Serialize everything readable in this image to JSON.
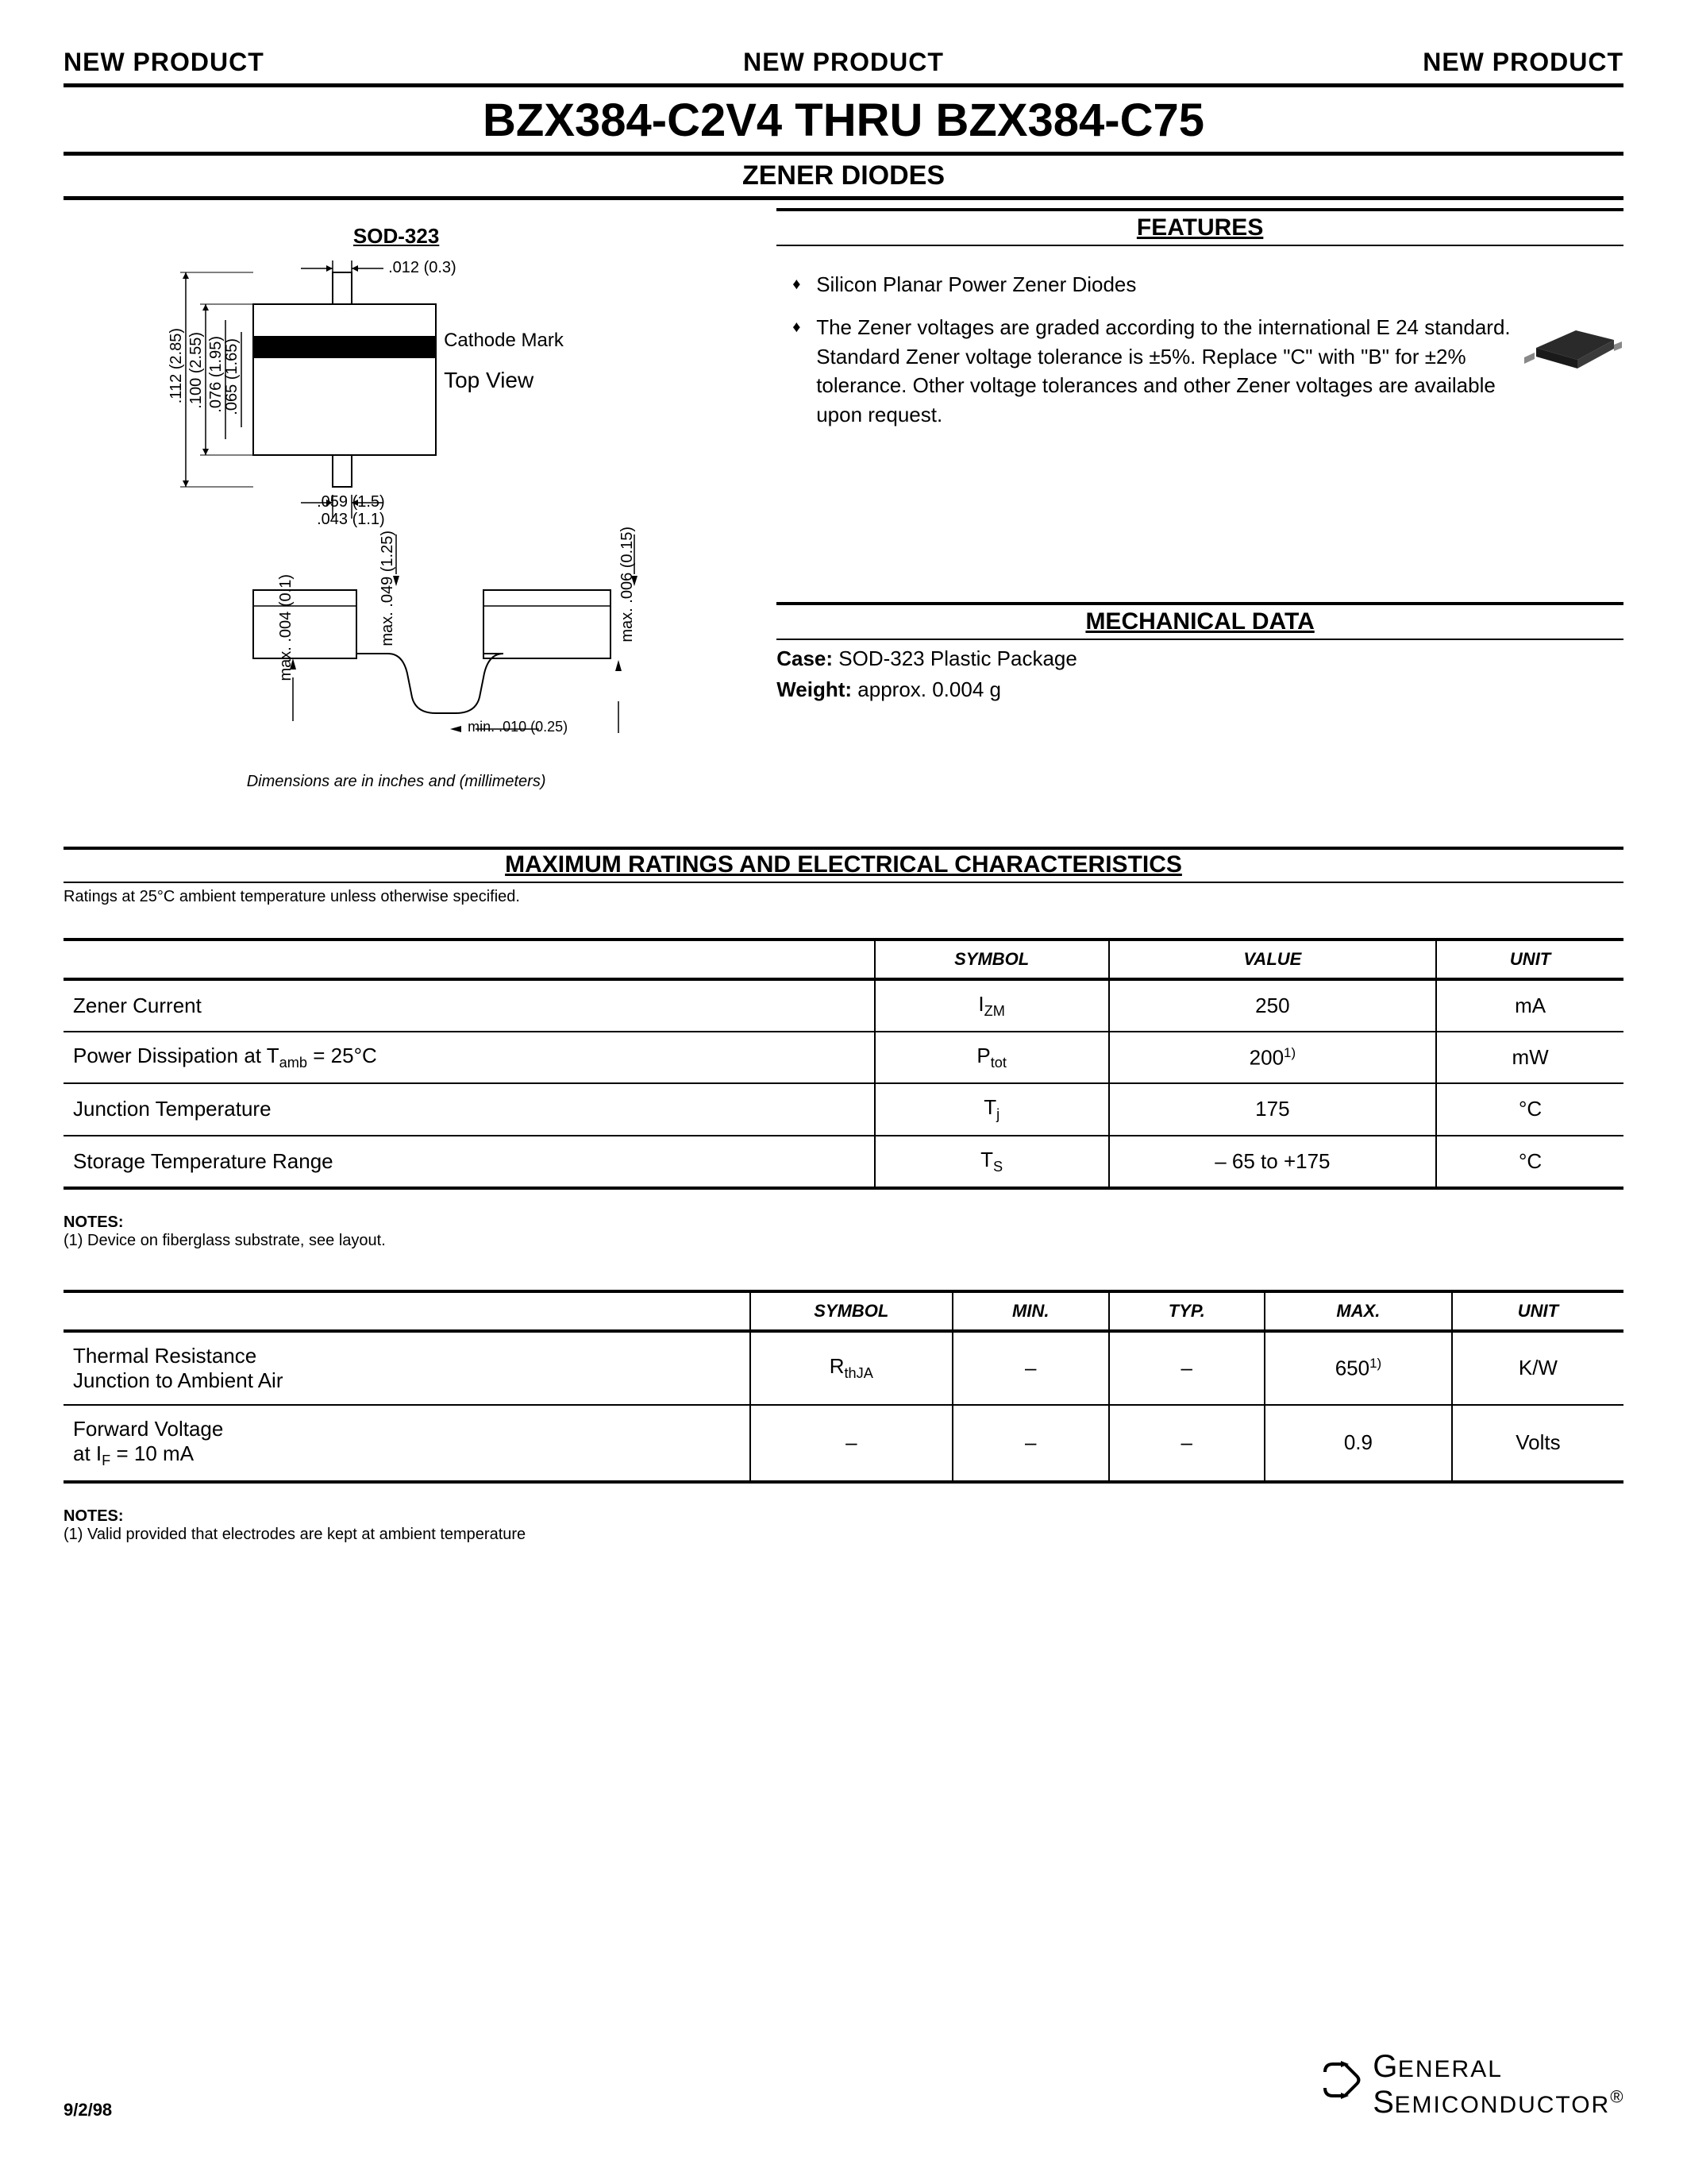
{
  "header": {
    "new_product": "NEW PRODUCT"
  },
  "title": "BZX384-C2V4 THRU BZX384-C75",
  "subtitle": "ZENER DIODES",
  "package_label": "SOD-323",
  "diagram": {
    "dims": {
      "lead_width": ".012 (0.3)",
      "body_h_outer": ".112 (2.85)",
      "body_h_mid": ".100 (2.55)",
      "body_h_inner1": ".076 (1.95)",
      "body_h_inner2": ".065 (1.65)",
      "lead_pitch1": ".059 (1.5)",
      "lead_pitch2": ".043 (1.1)",
      "side_h1": "max. .004 (0.1)",
      "side_h2": "max. .049 (1.25)",
      "side_h3": "max. .006 (0.15)",
      "side_min": "min. .010 (0.25)"
    },
    "cathode_label": "Cathode Mark",
    "view_label": "Top View",
    "note": "Dimensions are in inches and (millimeters)"
  },
  "features": {
    "heading": "FEATURES",
    "items": [
      "Silicon Planar Power Zener Diodes",
      "The Zener voltages are graded according to the international E 24 standard. Standard Zener voltage tolerance is ±5%. Replace \"C\" with \"B\" for ±2% tolerance. Other voltage tolerances and other Zener voltages are available upon request."
    ]
  },
  "mechanical": {
    "heading": "MECHANICAL DATA",
    "case_label": "Case:",
    "case_value": "SOD-323 Plastic Package",
    "weight_label": "Weight:",
    "weight_value": "approx. 0.004 g"
  },
  "ratings": {
    "heading": "MAXIMUM RATINGS AND ELECTRICAL CHARACTERISTICS",
    "note": "Ratings at 25°C ambient temperature unless otherwise specified.",
    "table1": {
      "columns": [
        "",
        "SYMBOL",
        "VALUE",
        "UNIT"
      ],
      "rows": [
        {
          "param": "Zener Current",
          "symbol": "I<sub>ZM</sub>",
          "value": "250",
          "unit": "mA"
        },
        {
          "param": "Power Dissipation at T<sub>amb</sub> = 25°C",
          "symbol": "P<sub>tot</sub>",
          "value": "200<sup>1)</sup>",
          "unit": "mW"
        },
        {
          "param": "Junction Temperature",
          "symbol": "T<sub>j</sub>",
          "value": "175",
          "unit": "°C"
        },
        {
          "param": "Storage Temperature Range",
          "symbol": "T<sub>S</sub>",
          "value": "– 65 to +175",
          "unit": "°C"
        }
      ],
      "col_widths": [
        "52%",
        "15%",
        "21%",
        "12%"
      ]
    },
    "notes1_label": "NOTES:",
    "notes1": "(1) Device on fiberglass substrate, see layout.",
    "table2": {
      "columns": [
        "",
        "SYMBOL",
        "MIN.",
        "TYP.",
        "MAX.",
        "UNIT"
      ],
      "rows": [
        {
          "param": "Thermal Resistance<br>Junction to Ambient Air",
          "symbol": "R<sub>thJA</sub>",
          "min": "–",
          "typ": "–",
          "max": "650<sup>1)</sup>",
          "unit": "K/W"
        },
        {
          "param": "Forward Voltage<br>at I<sub>F</sub> = 10 mA",
          "symbol": "–",
          "min": "–",
          "typ": "–",
          "max": "0.9",
          "unit": "Volts"
        }
      ],
      "col_widths": [
        "44%",
        "13%",
        "10%",
        "10%",
        "12%",
        "11%"
      ]
    },
    "notes2_label": "NOTES:",
    "notes2": "(1) Valid provided that electrodes are kept at ambient temperature"
  },
  "footer": {
    "date": "9/2/98",
    "company_line1": "General",
    "company_line2": "Semiconductor"
  },
  "colors": {
    "text": "#000000",
    "bg": "#ffffff",
    "chip_body": "#2a2a2a",
    "chip_edge": "#555555"
  }
}
